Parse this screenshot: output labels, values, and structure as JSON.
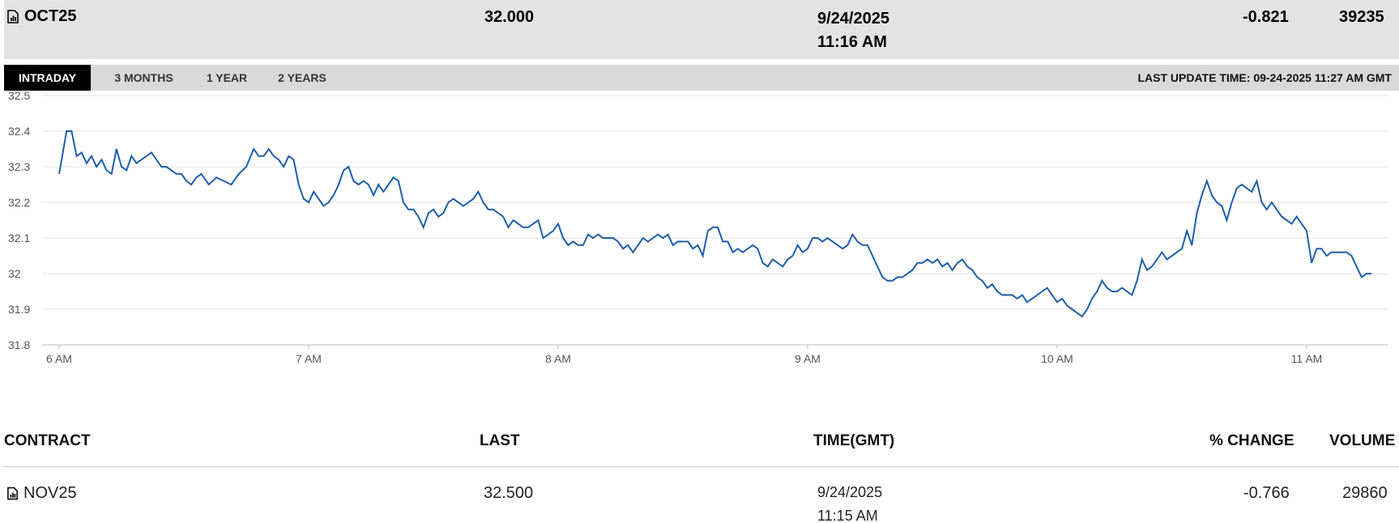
{
  "summary": {
    "contract": "OCT25",
    "last": "32.000",
    "date": "9/24/2025",
    "time": "11:16 AM",
    "change": "-0.821",
    "volume": "39235"
  },
  "tabs": [
    {
      "label": "INTRADAY",
      "active": true
    },
    {
      "label": "3 MONTHS",
      "active": false
    },
    {
      "label": "1 YEAR",
      "active": false
    },
    {
      "label": "2 YEARS",
      "active": false
    }
  ],
  "last_update": "LAST UPDATE TIME: 09-24-2025 11:27 AM GMT",
  "colors": {
    "line": "#1f5fa8",
    "grid": "#e0e0e0",
    "header_bg": "#e3e3e3",
    "tab_active_bg": "#000000"
  },
  "icons": {
    "contract_icon": "bar-chart-document-icon"
  },
  "chart_data": {
    "type": "line",
    "title": "",
    "xlabel": "",
    "ylabel": "",
    "ylim": [
      31.8,
      32.5
    ],
    "xlim": [
      "6:00",
      "11:30"
    ],
    "yticks": [
      "32.5",
      "32.4",
      "32.3",
      "32.2",
      "32.1",
      "32",
      "31.9",
      "31.8"
    ],
    "xticks": [
      "6 AM",
      "7 AM",
      "8 AM",
      "9 AM",
      "10 AM",
      "11 AM"
    ],
    "grid": true,
    "series": [
      {
        "x_hours": [
          6.0,
          6.03,
          6.05,
          6.07,
          6.09,
          6.11,
          6.13,
          6.15,
          6.17,
          6.19,
          6.21,
          6.23,
          6.25,
          6.27,
          6.29,
          6.31,
          6.33,
          6.35,
          6.37,
          6.39,
          6.41,
          6.43,
          6.45,
          6.47,
          6.49,
          6.51,
          6.53,
          6.55,
          6.57,
          6.6,
          6.63,
          6.66,
          6.69,
          6.72,
          6.75,
          6.78,
          6.8,
          6.82,
          6.84,
          6.86,
          6.88,
          6.9,
          6.92,
          6.94,
          6.96,
          6.98,
          7.0,
          7.02,
          7.04,
          7.06,
          7.08,
          7.1,
          7.12,
          7.14,
          7.16,
          7.18,
          7.2,
          7.22,
          7.24,
          7.26,
          7.28,
          7.3,
          7.32,
          7.34,
          7.36,
          7.38,
          7.4,
          7.42,
          7.44,
          7.46,
          7.48,
          7.5,
          7.52,
          7.54,
          7.56,
          7.58,
          7.6,
          7.62,
          7.64,
          7.66,
          7.68,
          7.7,
          7.72,
          7.74,
          7.76,
          7.78,
          7.8,
          7.82,
          7.84,
          7.86,
          7.88,
          7.9,
          7.92,
          7.94,
          7.96,
          7.98,
          8.0,
          8.02,
          8.04,
          8.06,
          8.08,
          8.1,
          8.12,
          8.14,
          8.16,
          8.18,
          8.2,
          8.22,
          8.24,
          8.26,
          8.28,
          8.3,
          8.32,
          8.34,
          8.36,
          8.38,
          8.4,
          8.42,
          8.44,
          8.46,
          8.48,
          8.5,
          8.52,
          8.54,
          8.56,
          8.58,
          8.6,
          8.62,
          8.64,
          8.66,
          8.68,
          8.7,
          8.72,
          8.74,
          8.76,
          8.78,
          8.8,
          8.82,
          8.84,
          8.86,
          8.88,
          8.9,
          8.92,
          8.94,
          8.96,
          8.98,
          9.0,
          9.02,
          9.04,
          9.06,
          9.08,
          9.1,
          9.12,
          9.14,
          9.16,
          9.18,
          9.2,
          9.22,
          9.24,
          9.26,
          9.28,
          9.3,
          9.32,
          9.34,
          9.36,
          9.38,
          9.4,
          9.42,
          9.44,
          9.46,
          9.48,
          9.5,
          9.52,
          9.54,
          9.56,
          9.58,
          9.6,
          9.62,
          9.64,
          9.66,
          9.68,
          9.7,
          9.72,
          9.74,
          9.76,
          9.78,
          9.8,
          9.82,
          9.84,
          9.86,
          9.88,
          9.9,
          9.92,
          9.94,
          9.96,
          9.98,
          10.0,
          10.02,
          10.04,
          10.06,
          10.08,
          10.1,
          10.12,
          10.14,
          10.16,
          10.18,
          10.2,
          10.22,
          10.24,
          10.26,
          10.28,
          10.3,
          10.32,
          10.34,
          10.36,
          10.38,
          10.4,
          10.42,
          10.44,
          10.46,
          10.48,
          10.5,
          10.52,
          10.54,
          10.56,
          10.58,
          10.6,
          10.62,
          10.64,
          10.66,
          10.68,
          10.7,
          10.72,
          10.74,
          10.76,
          10.78,
          10.8,
          10.82,
          10.84,
          10.86,
          10.88,
          10.9,
          10.92,
          10.94,
          10.96,
          10.98,
          11.0,
          11.02,
          11.04,
          11.06,
          11.08,
          11.1,
          11.12,
          11.14,
          11.16,
          11.18,
          11.2,
          11.22,
          11.24,
          11.26
        ],
        "y": [
          32.28,
          32.4,
          32.4,
          32.33,
          32.34,
          32.31,
          32.33,
          32.3,
          32.32,
          32.29,
          32.28,
          32.35,
          32.3,
          32.29,
          32.33,
          32.31,
          32.32,
          32.33,
          32.34,
          32.32,
          32.3,
          32.3,
          32.29,
          32.28,
          32.28,
          32.26,
          32.25,
          32.27,
          32.28,
          32.25,
          32.27,
          32.26,
          32.25,
          32.28,
          32.3,
          32.35,
          32.33,
          32.33,
          32.35,
          32.33,
          32.32,
          32.3,
          32.33,
          32.32,
          32.25,
          32.21,
          32.2,
          32.23,
          32.21,
          32.19,
          32.2,
          32.22,
          32.25,
          32.29,
          32.3,
          32.26,
          32.25,
          32.26,
          32.25,
          32.22,
          32.25,
          32.23,
          32.25,
          32.27,
          32.26,
          32.2,
          32.18,
          32.18,
          32.16,
          32.13,
          32.17,
          32.18,
          32.16,
          32.17,
          32.2,
          32.21,
          32.2,
          32.19,
          32.2,
          32.21,
          32.23,
          32.2,
          32.18,
          32.18,
          32.17,
          32.16,
          32.13,
          32.15,
          32.14,
          32.13,
          32.13,
          32.14,
          32.15,
          32.1,
          32.11,
          32.12,
          32.14,
          32.1,
          32.08,
          32.09,
          32.08,
          32.08,
          32.11,
          32.1,
          32.11,
          32.1,
          32.1,
          32.1,
          32.09,
          32.07,
          32.08,
          32.06,
          32.08,
          32.1,
          32.09,
          32.1,
          32.11,
          32.1,
          32.11,
          32.08,
          32.09,
          32.09,
          32.09,
          32.07,
          32.08,
          32.05,
          32.12,
          32.13,
          32.13,
          32.09,
          32.09,
          32.06,
          32.07,
          32.06,
          32.07,
          32.08,
          32.07,
          32.03,
          32.02,
          32.04,
          32.03,
          32.02,
          32.04,
          32.05,
          32.08,
          32.06,
          32.07,
          32.1,
          32.1,
          32.09,
          32.1,
          32.09,
          32.08,
          32.07,
          32.08,
          32.11,
          32.09,
          32.08,
          32.08,
          32.05,
          32.02,
          31.99,
          31.98,
          31.98,
          31.99,
          31.99,
          32.0,
          32.01,
          32.03,
          32.03,
          32.04,
          32.03,
          32.04,
          32.02,
          32.03,
          32.01,
          32.03,
          32.04,
          32.02,
          32.01,
          31.99,
          31.98,
          31.96,
          31.97,
          31.95,
          31.94,
          31.94,
          31.94,
          31.93,
          31.94,
          31.92,
          31.93,
          31.94,
          31.95,
          31.96,
          31.94,
          31.92,
          31.93,
          31.91,
          31.9,
          31.89,
          31.88,
          31.9,
          31.93,
          31.95,
          31.98,
          31.96,
          31.95,
          31.95,
          31.96,
          31.95,
          31.94,
          31.98,
          32.04,
          32.01,
          32.02,
          32.04,
          32.06,
          32.04,
          32.05,
          32.06,
          32.07,
          32.12,
          32.08,
          32.17,
          32.22,
          32.26,
          32.22,
          32.2,
          32.19,
          32.15,
          32.2,
          32.24,
          32.25,
          32.24,
          32.23,
          32.26,
          32.2,
          32.18,
          32.2,
          32.18,
          32.16,
          32.15,
          32.14,
          32.16,
          32.14,
          32.12,
          32.03,
          32.07,
          32.07,
          32.05,
          32.06,
          32.06,
          32.06,
          32.06,
          32.05,
          32.02,
          31.99,
          32.0,
          32.0
        ]
      }
    ]
  },
  "table": {
    "headers": {
      "contract": "CONTRACT",
      "last": "LAST",
      "time": "TIME(GMT)",
      "change": "% CHANGE",
      "volume": "VOLUME"
    },
    "rows": [
      {
        "contract": "NOV25",
        "last": "32.500",
        "date": "9/24/2025",
        "time": "11:15 AM",
        "change": "-0.766",
        "volume": "29860"
      }
    ]
  }
}
